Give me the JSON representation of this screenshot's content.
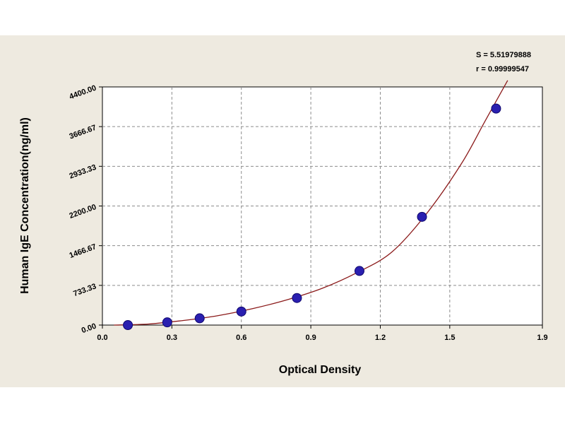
{
  "chart_data": {
    "type": "scatter",
    "title": "",
    "xlabel": "Optical Density",
    "ylabel": "Human IgE Concentration(ng/ml)",
    "xlim": [
      0.0,
      1.9
    ],
    "ylim": [
      0,
      4400
    ],
    "x_ticks": [
      0.0,
      0.3,
      0.6,
      0.9,
      1.2,
      1.5,
      1.9
    ],
    "x_tick_labels": [
      "0.0",
      "0.3",
      "0.6",
      "0.9",
      "1.2",
      "1.5",
      "1.9"
    ],
    "y_ticks": [
      0,
      733.33,
      1466.67,
      2200,
      2933.33,
      3666.67,
      4400
    ],
    "y_tick_labels": [
      "0.00",
      "733.33",
      "1466.67",
      "2200.00",
      "2933.33",
      "3666.67",
      "4400.00"
    ],
    "grid": true,
    "series": [
      {
        "name": "",
        "x": [
          0.11,
          0.28,
          0.42,
          0.6,
          0.84,
          1.11,
          1.38,
          1.7
        ],
        "y": [
          0,
          50,
          125,
          250,
          500,
          1000,
          2000,
          4000
        ],
        "color": "#2a1fb0"
      }
    ],
    "fit_curve": {
      "color": "#8b1a1a",
      "x": [
        0.05,
        0.2,
        0.35,
        0.5,
        0.65,
        0.8,
        0.95,
        1.1,
        1.25,
        1.4,
        1.55,
        1.65,
        1.75
      ],
      "y": [
        0,
        20,
        85,
        175,
        305,
        470,
        680,
        970,
        1350,
        2060,
        2980,
        3750,
        4520
      ]
    },
    "stats": {
      "s": "S = 5.51979888",
      "r": "r = 0.99999547"
    }
  }
}
